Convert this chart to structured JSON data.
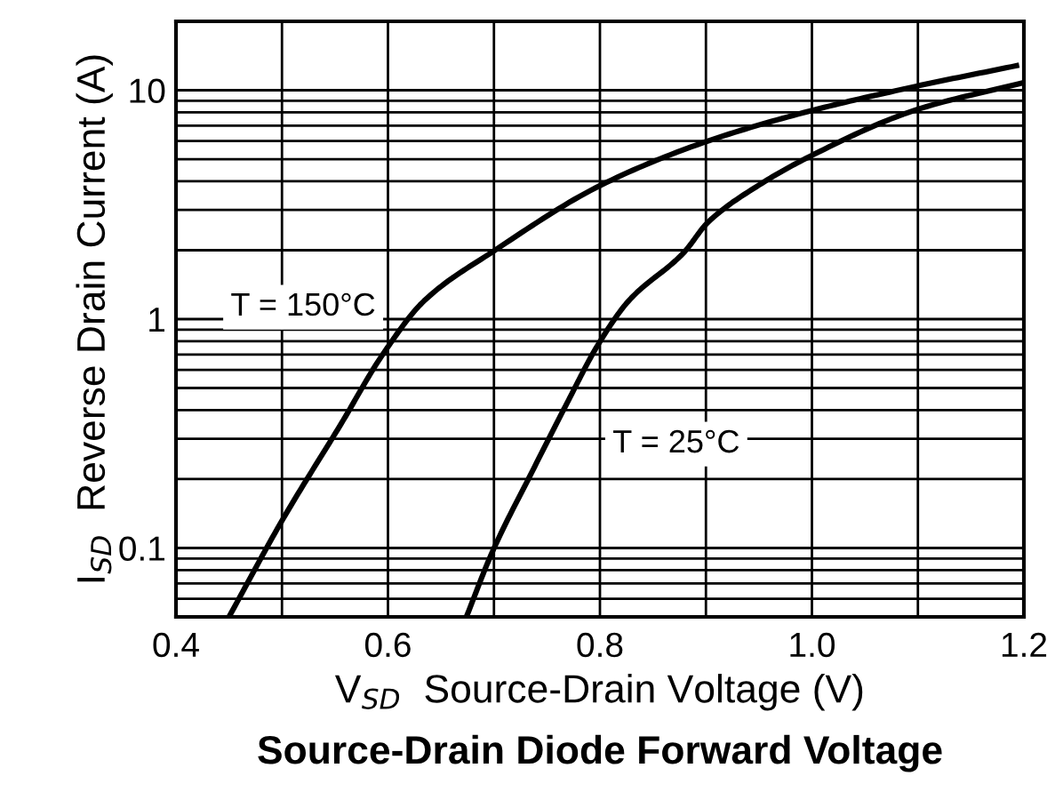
{
  "chart_data": {
    "type": "line",
    "title": "Source-Drain Diode Forward Voltage",
    "xlabel": "V$_{SD}$  Source-Drain Voltage (V)",
    "ylabel": "I$_{SD}$  Reverse Drain Current (A)",
    "log": "y",
    "grid": true,
    "line_style": "solid",
    "xlim": [
      0.4,
      1.2
    ],
    "ylim": [
      0.05,
      20
    ],
    "xticks": [
      0.4,
      {
        "value": 0.5,
        "label": null
      },
      0.6,
      {
        "value": 0.7,
        "label": null
      },
      0.8,
      {
        "value": 0.9,
        "label": null
      },
      {
        "value": 1.0,
        "label": "1.0"
      },
      {
        "value": 1.1,
        "label": null
      },
      1.2
    ],
    "yticks": [
      {
        "value": 0.05,
        "label": null
      },
      {
        "value": 0.06,
        "label": null
      },
      {
        "value": 0.07,
        "label": null
      },
      {
        "value": 0.08,
        "label": null
      },
      {
        "value": 0.09,
        "label": null
      },
      0.1,
      {
        "value": 0.2,
        "label": null
      },
      {
        "value": 0.3,
        "label": null
      },
      {
        "value": 0.4,
        "label": null
      },
      {
        "value": 0.5,
        "label": null
      },
      {
        "value": 0.6,
        "label": null
      },
      {
        "value": 0.7,
        "label": null
      },
      {
        "value": 0.8,
        "label": null
      },
      {
        "value": 0.9,
        "label": null
      },
      1,
      {
        "value": 2,
        "label": null
      },
      {
        "value": 3,
        "label": null
      },
      {
        "value": 4,
        "label": null
      },
      {
        "value": 5,
        "label": null
      },
      {
        "value": 6,
        "label": null
      },
      {
        "value": 7,
        "label": null
      },
      {
        "value": 8,
        "label": null
      },
      {
        "value": 9,
        "label": null
      },
      10,
      {
        "value": 20,
        "label": null
      }
    ],
    "series": [
      {
        "name": "T = 150°C",
        "color": "#000000",
        "x": [
          0.45,
          0.501,
          0.556,
          0.595,
          0.634,
          0.701,
          0.801,
          0.902,
          1.002,
          1.098,
          1.193
        ],
        "values": [
          0.05,
          0.134,
          0.35,
          0.7,
          1.2,
          2.0,
          3.85,
          6.0,
          8.2,
          10.4,
          12.8
        ]
      },
      {
        "name": "T = 25°C",
        "color": "#000000",
        "x": [
          0.674,
          0.698,
          0.737,
          0.769,
          0.798,
          0.827,
          0.879,
          0.902,
          0.95,
          1.002,
          1.098,
          1.2
        ],
        "values": [
          0.05,
          0.095,
          0.22,
          0.43,
          0.77,
          1.2,
          1.95,
          2.65,
          3.85,
          5.25,
          8.2,
          10.8
        ]
      }
    ]
  }
}
